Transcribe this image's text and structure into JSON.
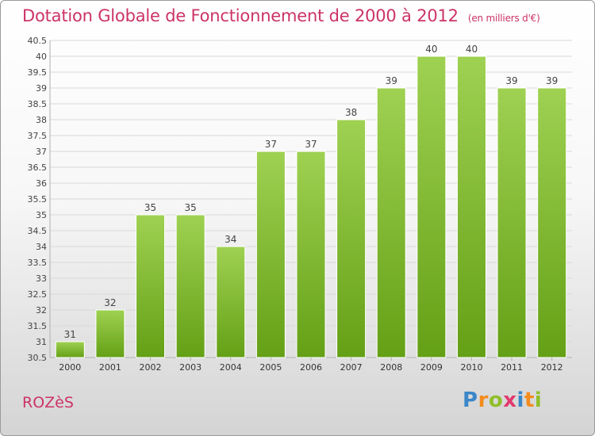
{
  "title": "Dotation Globale de Fonctionnement de 2000 à 2012",
  "unit": "(en milliers d'€)",
  "commune": "ROZèS",
  "brand": "Proxiti",
  "colors": {
    "title": "#cc3366",
    "bar_top": "#9fd152",
    "bar_bottom": "#64a016",
    "grid": "#d8d8d8"
  },
  "chart_data": {
    "type": "bar",
    "title": "Dotation Globale de Fonctionnement de 2000 à 2012",
    "subtitle": "(en milliers d'€)",
    "categories": [
      "2000",
      "2001",
      "2002",
      "2003",
      "2004",
      "2005",
      "2006",
      "2007",
      "2008",
      "2009",
      "2010",
      "2011",
      "2012"
    ],
    "values": [
      31,
      32,
      35,
      35,
      34,
      37,
      37,
      38,
      39,
      40,
      40,
      39,
      39
    ],
    "labels": [
      "31",
      "32",
      "35",
      "35",
      "34",
      "37",
      "37",
      "38",
      "39",
      "40",
      "40",
      "39",
      "39"
    ],
    "ylim": [
      30.5,
      40.5
    ],
    "yticks": [
      "30.5",
      "31",
      "31.5",
      "32",
      "32.5",
      "33",
      "33.5",
      "34",
      "34.5",
      "35",
      "35.5",
      "36",
      "36.5",
      "37",
      "37.5",
      "38",
      "38.5",
      "39",
      "39.5",
      "40",
      "40.5"
    ],
    "grid": true,
    "xlabel": "",
    "ylabel": ""
  }
}
